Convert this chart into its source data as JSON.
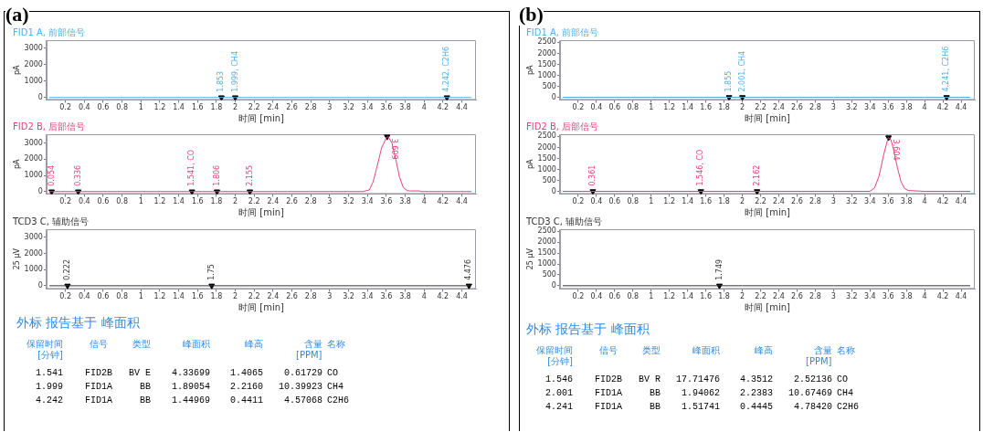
{
  "chart_data": [
    {
      "type": "line",
      "title": "FID1 A, 前部信号",
      "xlabel": "时间 [min]",
      "ylabel": "pA",
      "xlim": [
        0,
        4.55
      ],
      "ylim": [
        -150,
        3500
      ],
      "xticks": [
        0.2,
        0.4,
        0.6,
        0.8,
        1,
        1.2,
        1.4,
        1.6,
        1.8,
        2,
        2.2,
        2.4,
        2.6,
        2.8,
        3,
        3.2,
        3.4,
        3.6,
        3.8,
        4,
        4.2,
        4.4
      ],
      "yticks": [
        0,
        1000,
        2000,
        3000
      ],
      "series": [
        {
          "color": "#4fb0e6",
          "x": [
            0.03,
            1,
            2,
            3,
            4,
            4.5
          ],
          "values": [
            0,
            0,
            0,
            0,
            0,
            0
          ]
        },
        {
          "type": "scatter",
          "marker": "triangle",
          "color": "#000000",
          "x": [
            1.853,
            1.999,
            4.242
          ],
          "values": [
            0,
            0,
            0
          ]
        }
      ],
      "annotations": [
        "(a)",
        {
          "text": "1.853",
          "x": 1.853,
          "y": 0
        },
        {
          "text": "1.999, CH4",
          "x": 1.999,
          "y": 0
        },
        {
          "text": "4.242, C2H6",
          "x": 4.242,
          "y": 0
        }
      ]
    },
    {
      "type": "line",
      "title": "FID2 B, 后部信号",
      "xlabel": "时间 [min]",
      "ylabel": "pA",
      "xlim": [
        0,
        4.55
      ],
      "ylim": [
        -150,
        3550
      ],
      "xticks": [
        0.2,
        0.4,
        0.6,
        0.8,
        1,
        1.2,
        1.4,
        1.6,
        1.8,
        2,
        2.2,
        2.4,
        2.6,
        2.8,
        3,
        3.2,
        3.4,
        3.6,
        3.8,
        4,
        4.2,
        4.4
      ],
      "yticks": [
        0,
        1000,
        2000,
        3000
      ],
      "series": [
        {
          "color": "#e8407a",
          "x": [
            0.03,
            1,
            2,
            3,
            3.35,
            3.42,
            3.46,
            3.5,
            3.55,
            3.6,
            3.62,
            3.66,
            3.7,
            3.74,
            3.78,
            3.82,
            3.85,
            3.95,
            3.97,
            4.5
          ],
          "values": [
            0,
            0,
            0,
            0,
            0,
            100,
            600,
            1500,
            2700,
            3350,
            3400,
            3000,
            2000,
            900,
            250,
            60,
            40,
            40,
            0,
            0
          ]
        },
        {
          "type": "scatter",
          "marker": "triangle",
          "color": "#000000",
          "x": [
            0.054,
            0.336,
            1.541,
            1.806,
            2.155,
            3.609
          ],
          "values": [
            0,
            0,
            0,
            0,
            0,
            3400
          ]
        }
      ],
      "annotations": [
        {
          "text": "0.054",
          "x": 0.054,
          "y": 0
        },
        {
          "text": "0.336",
          "x": 0.336,
          "y": 0
        },
        {
          "text": "1.541, CO",
          "x": 1.541,
          "y": 0
        },
        {
          "text": "1.806",
          "x": 1.806,
          "y": 0
        },
        {
          "text": "2.155",
          "x": 2.155,
          "y": 0
        },
        {
          "text": "3.609",
          "x": 3.609,
          "y": 3400
        }
      ]
    },
    {
      "type": "line",
      "title": "TCD3 C, 辅助信号",
      "xlabel": "时间 [min]",
      "ylabel": "25 μV",
      "xlim": [
        0,
        4.55
      ],
      "ylim": [
        -200,
        3500
      ],
      "xticks": [
        0.2,
        0.4,
        0.6,
        0.8,
        1,
        1.2,
        1.4,
        1.6,
        1.8,
        2,
        2.2,
        2.4,
        2.6,
        2.8,
        3,
        3.2,
        3.4,
        3.6,
        3.8,
        4,
        4.2,
        4.4
      ],
      "yticks": [
        0,
        1000,
        2000,
        3000
      ],
      "series": [
        {
          "color": "#333333",
          "x": [
            0.03,
            1,
            2,
            3,
            4,
            4.5
          ],
          "values": [
            0,
            0,
            0,
            0,
            0,
            0
          ]
        },
        {
          "type": "scatter",
          "marker": "triangle",
          "color": "#000000",
          "x": [
            0.222,
            1.75,
            4.476
          ],
          "values": [
            0,
            0,
            0
          ]
        }
      ],
      "annotations": [
        {
          "text": "0.222",
          "x": 0.222,
          "y": 0
        },
        {
          "text": "1.75",
          "x": 1.75,
          "y": 0
        },
        {
          "text": "4.476",
          "x": 4.476,
          "y": 0
        }
      ]
    },
    {
      "type": "other",
      "title": "外标 报告基于 峰面积",
      "annotations": [
        "保留时间 [分钟]",
        "信号",
        "类型",
        "峰面积",
        "峰高",
        "含量 [PPM]",
        "名称",
        "1.541",
        "FID2B",
        "BV E",
        "4.33699",
        "1.4065",
        "0.61729",
        "CO",
        "1.999",
        "FID1A",
        "BB",
        "1.89054",
        "2.2160",
        "10.39923",
        "CH4",
        "4.242",
        "FID1A",
        "BB",
        "1.44969",
        "0.4411",
        "4.57068",
        "C2H6"
      ]
    },
    {
      "type": "line",
      "title": "FID1 A, 前部信号",
      "xlabel": "时间 [min]",
      "ylabel": "pA",
      "xlim": [
        0,
        4.55
      ],
      "ylim": [
        -120,
        2600
      ],
      "xticks": [
        0.2,
        0.4,
        0.6,
        0.8,
        1,
        1.2,
        1.4,
        1.6,
        1.8,
        2,
        2.2,
        2.4,
        2.6,
        2.8,
        3,
        3.2,
        3.4,
        3.6,
        3.8,
        4,
        4.2,
        4.4
      ],
      "yticks": [
        0,
        500,
        1000,
        1500,
        2000,
        2500
      ],
      "series": [
        {
          "color": "#4fb0e6",
          "x": [
            0.03,
            1,
            2,
            3,
            4,
            4.5
          ],
          "values": [
            0,
            0,
            0,
            0,
            0,
            0
          ]
        },
        {
          "type": "scatter",
          "marker": "triangle",
          "color": "#000000",
          "x": [
            1.855,
            2.001,
            4.241
          ],
          "values": [
            0,
            0,
            0
          ]
        }
      ],
      "annotations": [
        "(b)",
        {
          "text": "1.855",
          "x": 1.855,
          "y": 0
        },
        {
          "text": "2.001, CH4",
          "x": 2.001,
          "y": 0
        },
        {
          "text": "4.241, C2H6",
          "x": 4.241,
          "y": 0
        }
      ]
    },
    {
      "type": "line",
      "title": "FID2 B, 后部信号",
      "xlabel": "时间 [min]",
      "ylabel": "pA",
      "xlim": [
        0,
        4.55
      ],
      "ylim": [
        -120,
        2600
      ],
      "xticks": [
        0.2,
        0.4,
        0.6,
        0.8,
        1,
        1.2,
        1.4,
        1.6,
        1.8,
        2,
        2.2,
        2.4,
        2.6,
        2.8,
        3,
        3.2,
        3.4,
        3.6,
        3.8,
        4,
        4.2,
        4.4
      ],
      "yticks": [
        0,
        500,
        1000,
        1500,
        2000,
        2500
      ],
      "series": [
        {
          "color": "#e8407a",
          "x": [
            0.03,
            1,
            2,
            3,
            3.4,
            3.45,
            3.5,
            3.55,
            3.6,
            3.63,
            3.66,
            3.7,
            3.74,
            3.78,
            3.82,
            4,
            4.5
          ],
          "values": [
            0,
            0,
            0,
            0,
            0,
            150,
            700,
            1650,
            2450,
            2350,
            1900,
            1100,
            450,
            130,
            40,
            0,
            0
          ]
        },
        {
          "type": "scatter",
          "marker": "triangle",
          "color": "#000000",
          "x": [
            0.361,
            1.546,
            2.162,
            3.604
          ],
          "values": [
            0,
            0,
            0,
            2450
          ]
        }
      ],
      "annotations": [
        {
          "text": "0.361",
          "x": 0.361,
          "y": 0
        },
        {
          "text": "1.546, CO",
          "x": 1.546,
          "y": 0
        },
        {
          "text": "2.162",
          "x": 2.162,
          "y": 0
        },
        {
          "text": "3.604",
          "x": 3.604,
          "y": 2450
        }
      ]
    },
    {
      "type": "line",
      "title": "TCD3 C, 辅助信号",
      "xlabel": "时间 [min]",
      "ylabel": "25 μV",
      "xlim": [
        0,
        4.55
      ],
      "ylim": [
        -150,
        2600
      ],
      "xticks": [
        0.2,
        0.4,
        0.6,
        0.8,
        1,
        1.2,
        1.4,
        1.6,
        1.8,
        2,
        2.2,
        2.4,
        2.6,
        2.8,
        3,
        3.2,
        3.4,
        3.6,
        3.8,
        4,
        4.2,
        4.4
      ],
      "yticks": [
        0,
        500,
        1000,
        1500,
        2000,
        2500
      ],
      "series": [
        {
          "color": "#333333",
          "x": [
            0.03,
            1,
            2,
            3,
            4,
            4.5
          ],
          "values": [
            0,
            0,
            0,
            0,
            0,
            0
          ]
        },
        {
          "type": "scatter",
          "marker": "triangle",
          "color": "#000000",
          "x": [
            1.749
          ],
          "values": [
            0
          ]
        }
      ],
      "annotations": [
        {
          "text": "1.749",
          "x": 1.749,
          "y": 0
        }
      ]
    },
    {
      "type": "other",
      "title": "外标 报告基于 峰面积",
      "annotations": [
        "保留时间 [分钟]",
        "信号",
        "类型",
        "峰面积",
        "峰高",
        "含量 [PPM]",
        "名称",
        "1.546",
        "FID2B",
        "BV R",
        "17.71476",
        "4.3512",
        "2.52136",
        "CO",
        "2.001",
        "FID1A",
        "BB",
        "1.94062",
        "2.2383",
        "10.67469",
        "CH4",
        "4.241",
        "FID1A",
        "BB",
        "1.51741",
        "0.4445",
        "4.78420",
        "C2H6"
      ]
    }
  ]
}
